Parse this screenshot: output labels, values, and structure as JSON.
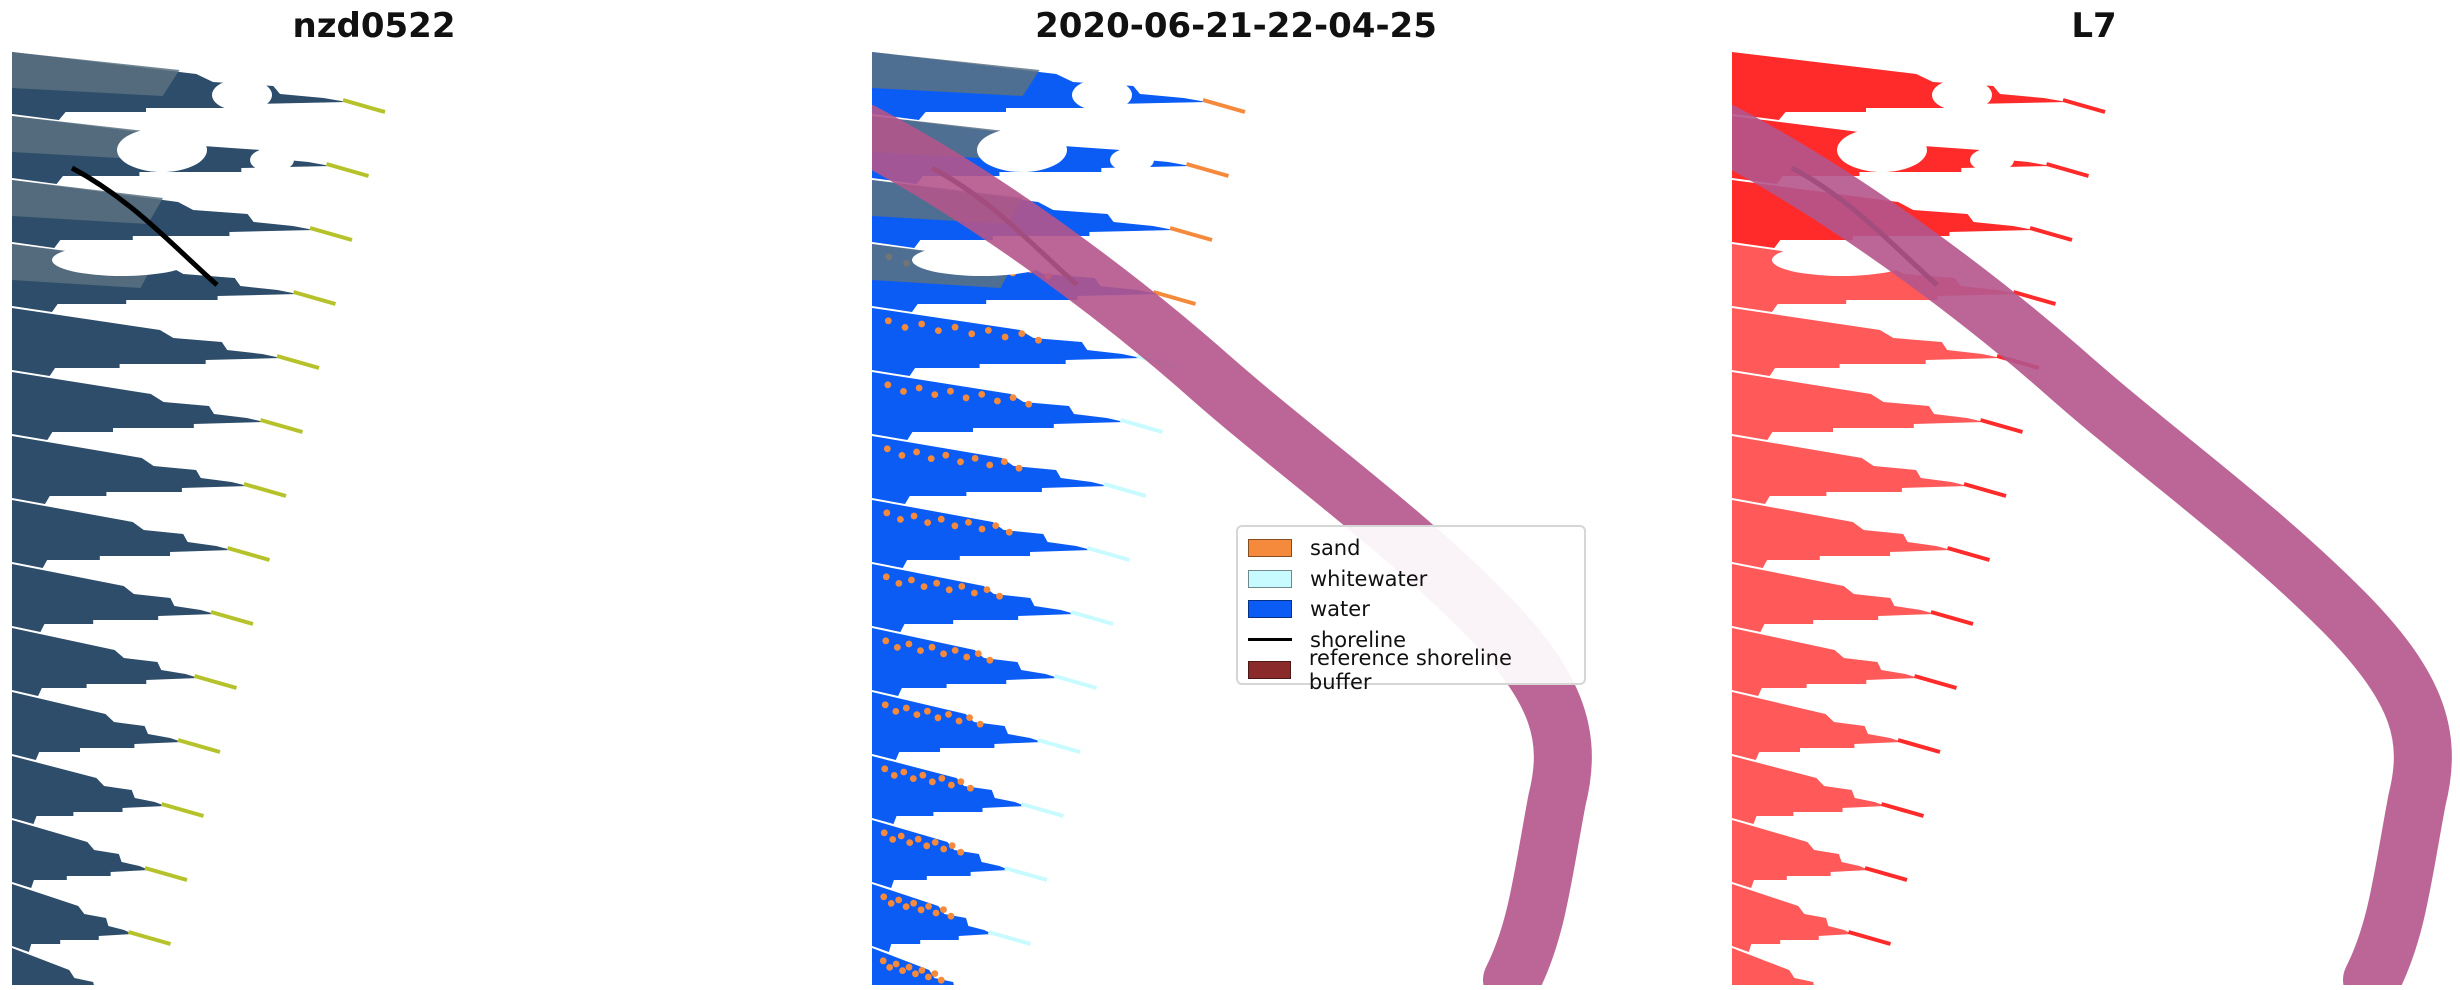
{
  "panels": [
    {
      "title": "nzd0522",
      "mode": "rgb"
    },
    {
      "title": "2020-06-21-22-04-25",
      "mode": "classified"
    },
    {
      "title": "L7",
      "mode": "mask"
    }
  ],
  "legend": {
    "items": [
      {
        "label": "sand",
        "color": "#f58a3c",
        "kind": "patch"
      },
      {
        "label": "whitewater",
        "color": "#c8fbff",
        "kind": "patch"
      },
      {
        "label": "water",
        "color": "#0a5cf5",
        "kind": "patch"
      },
      {
        "label": "shoreline",
        "color": "#000000",
        "kind": "line"
      },
      {
        "label": "reference shoreline buffer",
        "color": "#8b2a2a",
        "kind": "patch"
      }
    ]
  },
  "colors": {
    "rgb_water": "#2d4d6a",
    "rgb_land": "#5b7180",
    "cloud": "#ffffff",
    "classified_water": "#0a5cf5",
    "sand": "#f58a3c",
    "whitewater": "#c8fbff",
    "mask_red": "#ff2a2a",
    "buffer_magenta": "#b4558c",
    "shoreline": "#000000",
    "tail_yellow": "#b6c22a"
  }
}
